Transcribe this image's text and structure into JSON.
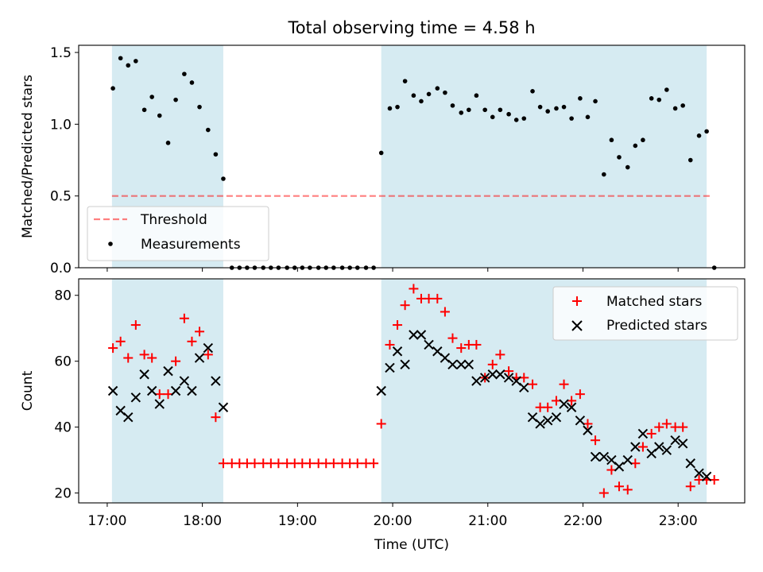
{
  "title": "Total observing time = 4.58 h",
  "xlabel": "Time (UTC)",
  "x_ticks": [
    "17:00",
    "18:00",
    "19:00",
    "20:00",
    "21:00",
    "22:00",
    "23:00"
  ],
  "x_tick_hours": [
    17,
    18,
    19,
    20,
    21,
    22,
    23
  ],
  "colors": {
    "span": "#add8e6",
    "threshold": "#ff0000",
    "matched": "#ff0000",
    "predicted": "#000000",
    "measurement": "#000000"
  },
  "chart_data": [
    {
      "type": "scatter",
      "ylabel": "Matched/Predicted stars",
      "xlim_hours": [
        16.7,
        23.7
      ],
      "ylim": [
        0,
        1.55
      ],
      "y_ticks": [
        "0.0",
        "0.5",
        "1.0",
        "1.5"
      ],
      "y_tick_values": [
        0,
        0.5,
        1,
        1.5
      ],
      "legend_position": "lower-left",
      "observing_windows_hours": [
        [
          17.05,
          18.22
        ],
        [
          19.88,
          23.3
        ]
      ],
      "threshold": {
        "name": "Threshold",
        "value": 0.5,
        "x_range_hours": [
          17.05,
          23.35
        ]
      },
      "series": [
        {
          "name": "Measurements",
          "x_hours": [
            17.06,
            17.14,
            17.22,
            17.3,
            17.39,
            17.47,
            17.55,
            17.64,
            17.72,
            17.81,
            17.89,
            17.97,
            18.06,
            18.14,
            18.22,
            18.31,
            18.39,
            18.47,
            18.55,
            18.64,
            18.72,
            18.8,
            18.89,
            18.97,
            19.05,
            19.13,
            19.22,
            19.3,
            19.38,
            19.47,
            19.55,
            19.63,
            19.72,
            19.8,
            19.88,
            19.97,
            20.05,
            20.13,
            20.22,
            20.3,
            20.38,
            20.47,
            20.55,
            20.63,
            20.72,
            20.8,
            20.88,
            20.97,
            21.05,
            21.13,
            21.22,
            21.3,
            21.38,
            21.47,
            21.55,
            21.63,
            21.72,
            21.8,
            21.88,
            21.97,
            22.05,
            22.13,
            22.22,
            22.3,
            22.38,
            22.47,
            22.55,
            22.63,
            22.72,
            22.8,
            22.88,
            22.97,
            23.05,
            23.13,
            23.22,
            23.3,
            23.38
          ],
          "y": [
            1.25,
            1.46,
            1.41,
            1.44,
            1.1,
            1.19,
            1.06,
            0.87,
            1.17,
            1.35,
            1.29,
            1.12,
            0.96,
            0.79,
            0.62,
            0,
            0,
            0,
            0,
            0,
            0,
            0,
            0,
            0,
            0,
            0,
            0,
            0,
            0,
            0,
            0,
            0,
            0,
            0,
            0.8,
            1.11,
            1.12,
            1.3,
            1.2,
            1.16,
            1.21,
            1.25,
            1.22,
            1.13,
            1.08,
            1.1,
            1.2,
            1.1,
            1.05,
            1.1,
            1.07,
            1.03,
            1.04,
            1.23,
            1.12,
            1.09,
            1.11,
            1.12,
            1.04,
            1.18,
            1.05,
            1.16,
            0.65,
            0.89,
            0.77,
            0.7,
            0.85,
            0.89,
            1.18,
            1.17,
            1.24,
            1.11,
            1.13,
            0.75,
            0.92,
            0.95,
            0
          ]
        }
      ]
    },
    {
      "type": "scatter",
      "ylabel": "Count",
      "xlim_hours": [
        16.7,
        23.7
      ],
      "ylim": [
        17,
        85
      ],
      "y_ticks": [
        "20",
        "40",
        "60",
        "80"
      ],
      "y_tick_values": [
        20,
        40,
        60,
        80
      ],
      "legend_position": "upper-right",
      "observing_windows_hours": [
        [
          17.05,
          18.22
        ],
        [
          19.88,
          23.3
        ]
      ],
      "series": [
        {
          "name": "Matched stars",
          "marker": "plus",
          "x_hours": [
            17.06,
            17.14,
            17.22,
            17.3,
            17.39,
            17.47,
            17.55,
            17.64,
            17.72,
            17.81,
            17.89,
            17.97,
            18.06,
            18.14,
            18.22,
            18.31,
            18.39,
            18.47,
            18.55,
            18.64,
            18.72,
            18.8,
            18.89,
            18.97,
            19.05,
            19.13,
            19.22,
            19.3,
            19.38,
            19.47,
            19.55,
            19.63,
            19.72,
            19.8,
            19.88,
            19.97,
            20.05,
            20.13,
            20.22,
            20.3,
            20.38,
            20.47,
            20.55,
            20.63,
            20.72,
            20.8,
            20.88,
            20.97,
            21.05,
            21.13,
            21.22,
            21.3,
            21.38,
            21.47,
            21.55,
            21.63,
            21.72,
            21.8,
            21.88,
            21.97,
            22.05,
            22.13,
            22.22,
            22.3,
            22.38,
            22.47,
            22.55,
            22.63,
            22.72,
            22.8,
            22.88,
            22.97,
            23.05,
            23.13,
            23.22,
            23.3,
            23.38
          ],
          "y": [
            64,
            66,
            61,
            71,
            62,
            61,
            50,
            50,
            60,
            73,
            66,
            69,
            62,
            43,
            29,
            29,
            29,
            29,
            29,
            29,
            29,
            29,
            29,
            29,
            29,
            29,
            29,
            29,
            29,
            29,
            29,
            29,
            29,
            29,
            41,
            65,
            71,
            77,
            82,
            79,
            79,
            79,
            75,
            67,
            64,
            65,
            65,
            55,
            59,
            62,
            57,
            55,
            55,
            53,
            46,
            46,
            48,
            53,
            48,
            50,
            41,
            36,
            20,
            27,
            22,
            21,
            29,
            34,
            38,
            40,
            41,
            40,
            40,
            22,
            24,
            24,
            24
          ]
        },
        {
          "name": "Predicted stars",
          "marker": "x",
          "x_hours": [
            17.06,
            17.14,
            17.22,
            17.3,
            17.39,
            17.47,
            17.55,
            17.64,
            17.72,
            17.81,
            17.89,
            17.97,
            18.06,
            18.14,
            18.22,
            19.88,
            19.97,
            20.05,
            20.13,
            20.22,
            20.3,
            20.38,
            20.47,
            20.55,
            20.63,
            20.72,
            20.8,
            20.88,
            20.97,
            21.05,
            21.13,
            21.22,
            21.3,
            21.38,
            21.47,
            21.55,
            21.63,
            21.72,
            21.8,
            21.88,
            21.97,
            22.05,
            22.13,
            22.22,
            22.3,
            22.38,
            22.47,
            22.55,
            22.63,
            22.72,
            22.8,
            22.88,
            22.97,
            23.05,
            23.13,
            23.22,
            23.3
          ],
          "y": [
            51,
            45,
            43,
            49,
            56,
            51,
            47,
            57,
            51,
            54,
            51,
            61,
            64,
            54,
            46,
            51,
            58,
            63,
            59,
            68,
            68,
            65,
            63,
            61,
            59,
            59,
            59,
            54,
            55,
            56,
            56,
            55,
            54,
            52,
            43,
            41,
            42,
            43,
            47,
            46,
            42,
            39,
            31,
            31,
            30,
            28,
            30,
            34,
            38,
            32,
            34,
            33,
            36,
            35,
            29,
            26,
            25
          ]
        }
      ]
    }
  ]
}
